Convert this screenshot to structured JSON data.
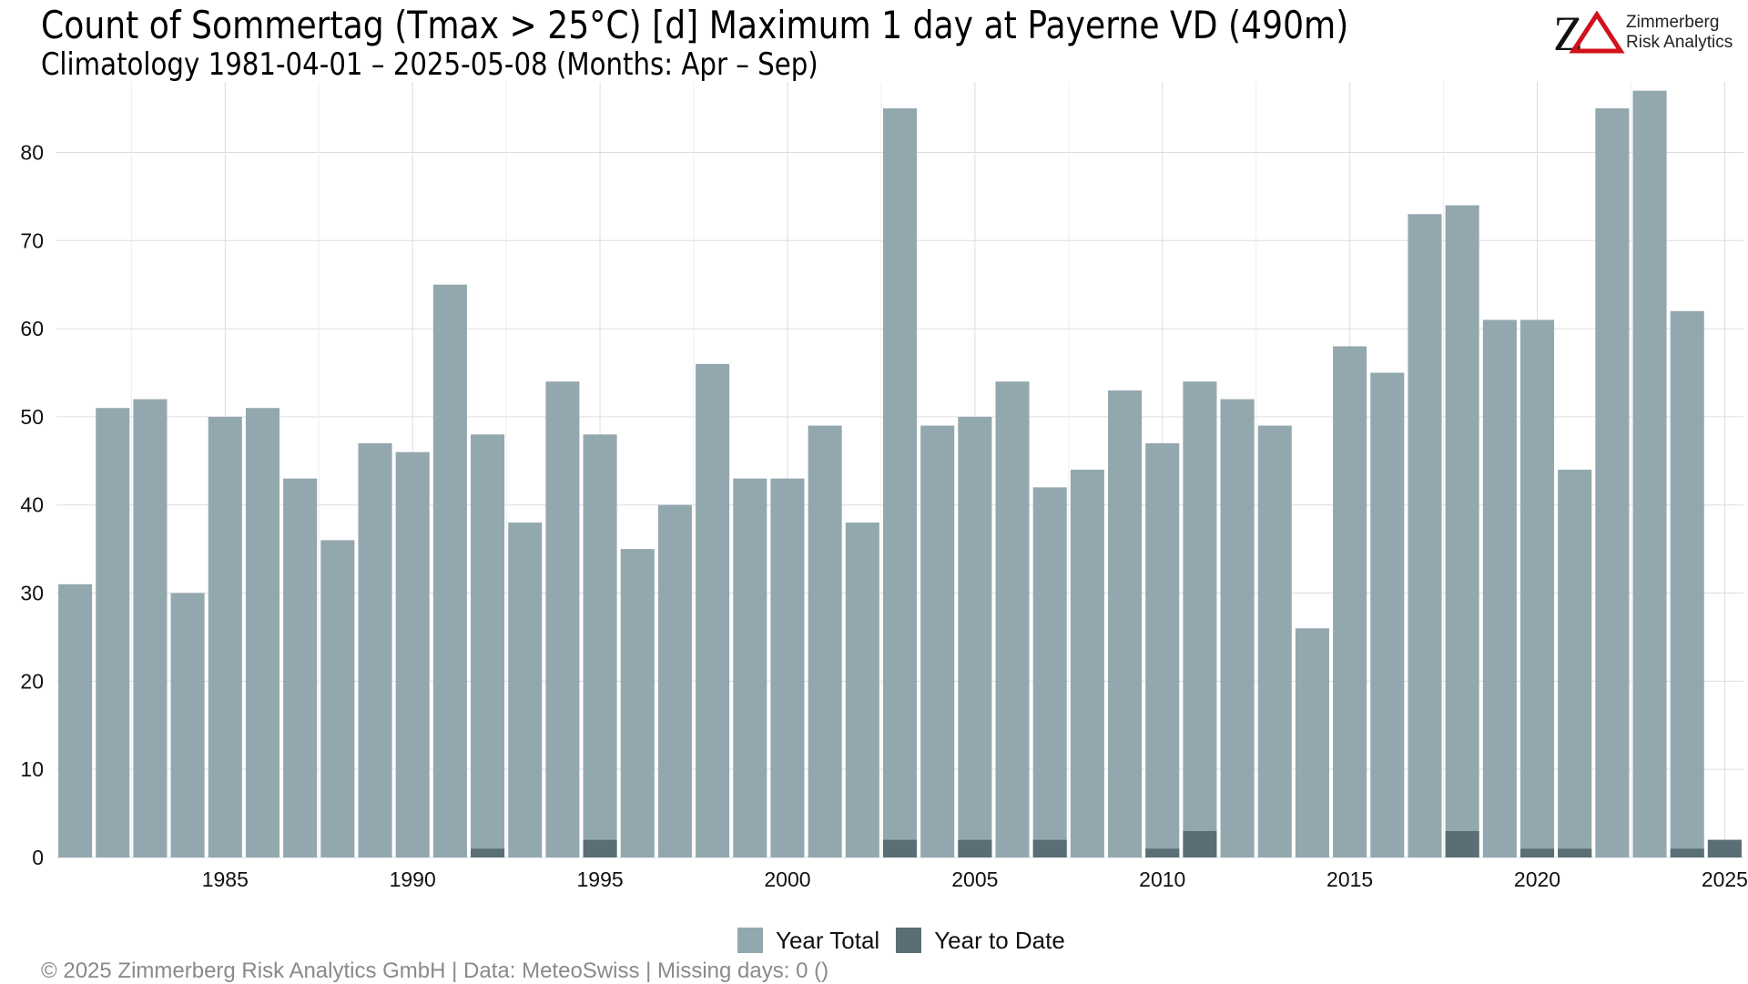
{
  "title": "Count of Sommertag (Tmax > 25°C) [d] Maximum 1 day at Payerne  VD (490m)",
  "subtitle": "Climatology 1981-04-01 – 2025-05-08 (Months: Apr – Sep)",
  "logo": {
    "mark": "ZΔ",
    "line1": "Zimmerberg",
    "line2": "Risk Analytics",
    "mark_color": "#d0121b"
  },
  "footer": "© 2025 Zimmerberg Risk Analytics GmbH | Data: MeteoSwiss | Missing days: 0 ()",
  "colors": {
    "year_total": "#93a7ae",
    "year_to_date": "#5b6e75",
    "grid": "#dddddd"
  },
  "chart_data": {
    "type": "bar",
    "x": [
      1981,
      1982,
      1983,
      1984,
      1985,
      1986,
      1987,
      1988,
      1989,
      1990,
      1991,
      1992,
      1993,
      1994,
      1995,
      1996,
      1997,
      1998,
      1999,
      2000,
      2001,
      2002,
      2003,
      2004,
      2005,
      2006,
      2007,
      2008,
      2009,
      2010,
      2011,
      2012,
      2013,
      2014,
      2015,
      2016,
      2017,
      2018,
      2019,
      2020,
      2021,
      2022,
      2023,
      2024,
      2025
    ],
    "series": [
      {
        "name": "Year Total",
        "values": [
          31,
          51,
          52,
          30,
          50,
          51,
          43,
          36,
          47,
          46,
          65,
          48,
          38,
          54,
          48,
          35,
          40,
          56,
          43,
          43,
          49,
          38,
          85,
          49,
          50,
          54,
          42,
          44,
          53,
          47,
          54,
          52,
          49,
          26,
          58,
          55,
          73,
          74,
          61,
          61,
          44,
          85,
          87,
          62,
          2
        ]
      },
      {
        "name": "Year to Date",
        "values": [
          0,
          0,
          0,
          0,
          0,
          0,
          0,
          0,
          0,
          0,
          0,
          1,
          0,
          0,
          2,
          0,
          0,
          0,
          0,
          0,
          0,
          0,
          2,
          0,
          2,
          0,
          2,
          0,
          0,
          1,
          3,
          0,
          0,
          0,
          0,
          0,
          0,
          3,
          0,
          1,
          1,
          0,
          0,
          1,
          2
        ]
      }
    ],
    "x_ticks": [
      "1985",
      "1990",
      "1995",
      "2000",
      "2005",
      "2010",
      "2015",
      "2020",
      "2025"
    ],
    "y_ticks": [
      "0",
      "10",
      "20",
      "30",
      "40",
      "50",
      "60",
      "70",
      "80"
    ],
    "ylim": [
      0,
      88
    ],
    "xlim": [
      1980.5,
      2025.5
    ],
    "grid": true,
    "legend": "bottom"
  }
}
